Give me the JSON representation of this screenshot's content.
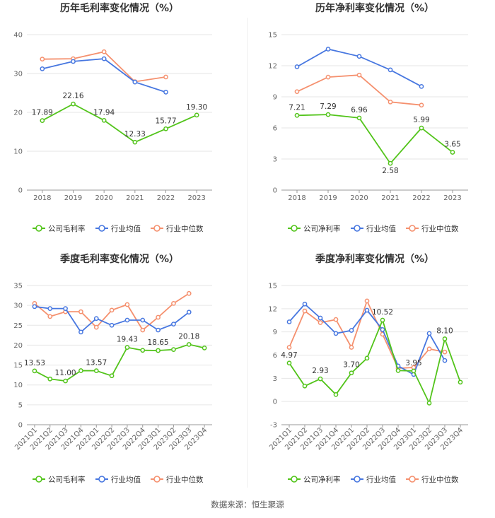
{
  "colors": {
    "company": "#52c41a",
    "average": "#4777e0",
    "median": "#f5906e"
  },
  "source": "数据来源：恒生聚源",
  "chart_data": [
    {
      "type": "line",
      "title": "历年毛利率变化情况（%）",
      "categories": [
        "2018",
        "2019",
        "2020",
        "2021",
        "2022",
        "2023"
      ],
      "ylim": [
        0,
        40
      ],
      "yticks": [
        0,
        10,
        20,
        30,
        40
      ],
      "grid": true,
      "legend": "bottom",
      "series": [
        {
          "name": "公司毛利率",
          "key": "company",
          "values": [
            17.89,
            22.16,
            17.94,
            12.33,
            15.77,
            19.3
          ],
          "labels": [
            "17.89",
            "22.16",
            "17.94",
            "12.33",
            "15.77",
            "19.30"
          ]
        },
        {
          "name": "行业均值",
          "key": "average",
          "values": [
            31.2,
            33.1,
            33.8,
            27.8,
            25.2,
            null
          ]
        },
        {
          "name": "行业中位数",
          "key": "median",
          "values": [
            33.7,
            33.8,
            35.6,
            27.9,
            29.1,
            null
          ]
        }
      ]
    },
    {
      "type": "line",
      "title": "历年净利率变化情况（%）",
      "categories": [
        "2018",
        "2019",
        "2020",
        "2021",
        "2022",
        "2023"
      ],
      "ylim": [
        0,
        15
      ],
      "yticks": [
        0,
        3,
        6,
        9,
        12,
        15
      ],
      "grid": true,
      "legend": "bottom",
      "series": [
        {
          "name": "公司净利率",
          "key": "company",
          "values": [
            7.21,
            7.29,
            6.96,
            2.58,
            5.99,
            3.65
          ],
          "labels": [
            "7.21",
            "7.29",
            "6.96",
            "2.58",
            "5.99",
            "3.65"
          ]
        },
        {
          "name": "行业均值",
          "key": "average",
          "values": [
            11.9,
            13.6,
            12.9,
            11.6,
            10.0,
            null
          ]
        },
        {
          "name": "行业中位数",
          "key": "median",
          "values": [
            9.5,
            10.9,
            11.1,
            8.5,
            8.2,
            null
          ]
        }
      ]
    },
    {
      "type": "line",
      "title": "季度毛利率变化情况（%）",
      "categories": [
        "2021Q1",
        "2021Q2",
        "2021Q3",
        "2021Q4",
        "2022Q1",
        "2022Q2",
        "2022Q3",
        "2022Q4",
        "2023Q1",
        "2023Q2",
        "2023Q3",
        "2023Q4"
      ],
      "ylim": [
        0,
        35
      ],
      "yticks": [
        0,
        5,
        10,
        15,
        20,
        25,
        30,
        35
      ],
      "grid": true,
      "legend": "bottom",
      "series": [
        {
          "name": "公司毛利率",
          "key": "company",
          "values": [
            13.53,
            11.5,
            11.0,
            13.6,
            13.57,
            12.3,
            19.43,
            18.7,
            18.65,
            18.9,
            20.18,
            19.3
          ],
          "labels": [
            "13.53",
            null,
            "11.00",
            null,
            "13.57",
            null,
            "19.43",
            null,
            "18.65",
            null,
            "20.18",
            null
          ]
        },
        {
          "name": "行业均值",
          "key": "average",
          "values": [
            29.7,
            29.2,
            29.2,
            23.3,
            26.7,
            25.0,
            26.3,
            26.3,
            23.8,
            25.3,
            28.3,
            null
          ]
        },
        {
          "name": "行业中位数",
          "key": "median",
          "values": [
            30.5,
            27.2,
            28.4,
            28.4,
            24.5,
            28.8,
            30.2,
            23.8,
            27.0,
            30.5,
            33.0,
            null
          ]
        }
      ]
    },
    {
      "type": "line",
      "title": "季度净利率变化情况（%）",
      "categories": [
        "2021Q1",
        "2021Q2",
        "2021Q3",
        "2021Q4",
        "2022Q1",
        "2022Q2",
        "2022Q3",
        "2022Q4",
        "2023Q1",
        "2023Q2",
        "2023Q3",
        "2023Q4"
      ],
      "ylim": [
        -3,
        15
      ],
      "yticks": [
        -3,
        0,
        3,
        6,
        9,
        12,
        15
      ],
      "grid": true,
      "legend": "bottom",
      "series": [
        {
          "name": "公司净利率",
          "key": "company",
          "values": [
            4.97,
            2.0,
            2.93,
            0.9,
            3.7,
            5.6,
            10.52,
            4.0,
            3.95,
            -0.2,
            8.1,
            2.5
          ],
          "labels": [
            "4.97",
            null,
            "2.93",
            null,
            "3.70",
            null,
            "10.52",
            null,
            "3.95",
            null,
            "8.10",
            null
          ]
        },
        {
          "name": "行业均值",
          "key": "average",
          "values": [
            10.3,
            12.6,
            10.8,
            8.8,
            9.2,
            11.8,
            9.3,
            4.6,
            3.5,
            8.8,
            5.3,
            null
          ]
        },
        {
          "name": "行业中位数",
          "key": "median",
          "values": [
            7.0,
            11.7,
            10.2,
            10.6,
            7.0,
            13.0,
            8.7,
            4.3,
            4.4,
            6.8,
            6.4,
            null
          ]
        }
      ]
    }
  ]
}
